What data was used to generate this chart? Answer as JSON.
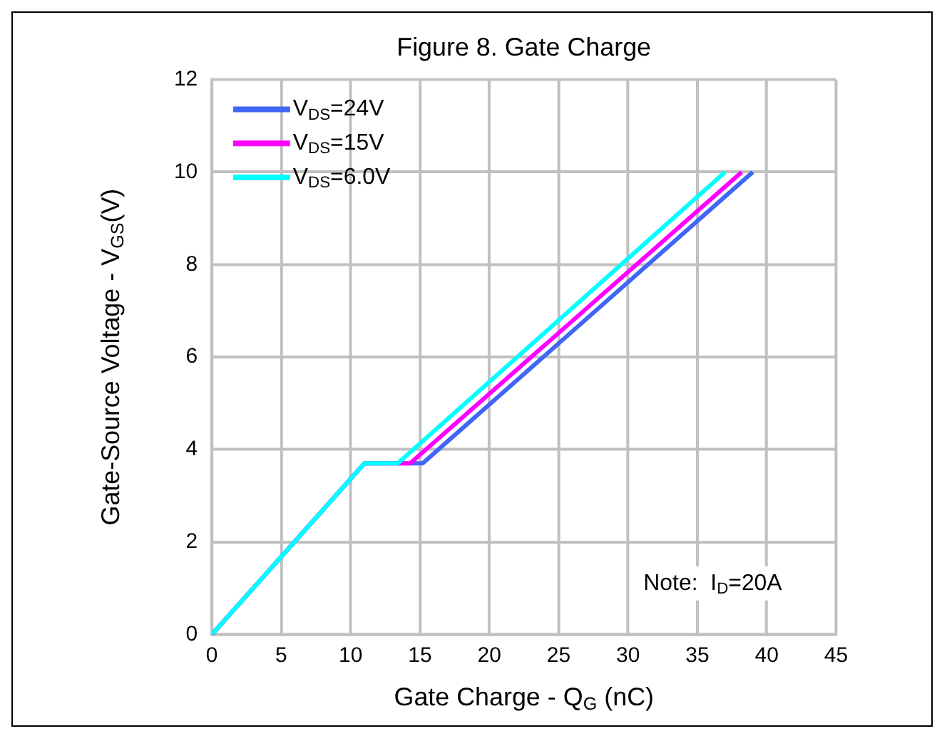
{
  "chart_data": {
    "type": "line",
    "title": "Figure 8. Gate Charge",
    "xlabel": "Gate Charge - Q$_{G}$ (nC)",
    "ylabel": "Gate-Source Voltage - V$_{GS}$(V)",
    "annotations": [
      "Note:  I$_{D}$=20A"
    ],
    "xlim": [
      0,
      45
    ],
    "xticks": [
      0,
      5,
      10,
      15,
      20,
      25,
      30,
      35,
      40,
      45
    ],
    "ylim": [
      0,
      12
    ],
    "yticks": [
      0,
      2,
      4,
      6,
      8,
      10,
      12
    ],
    "grid": true,
    "legend": "top left",
    "marker": "none",
    "line_style": "solid",
    "series": [
      {
        "name": "V$_{DS}$=24V",
        "color": "#3f66f5",
        "x": [
          0,
          11,
          15.2,
          39
        ],
        "values": [
          0,
          3.7,
          3.7,
          10
        ]
      },
      {
        "name": "V$_{DS}$=15V",
        "color": "#ff00ff",
        "x": [
          0,
          11,
          14.3,
          38.2
        ],
        "values": [
          0,
          3.7,
          3.7,
          10
        ]
      },
      {
        "name": "V$_{DS}$=6.0V",
        "color": "#00ffff",
        "x": [
          0,
          11,
          13.4,
          37
        ],
        "values": [
          0,
          3.7,
          3.7,
          10
        ]
      }
    ]
  }
}
